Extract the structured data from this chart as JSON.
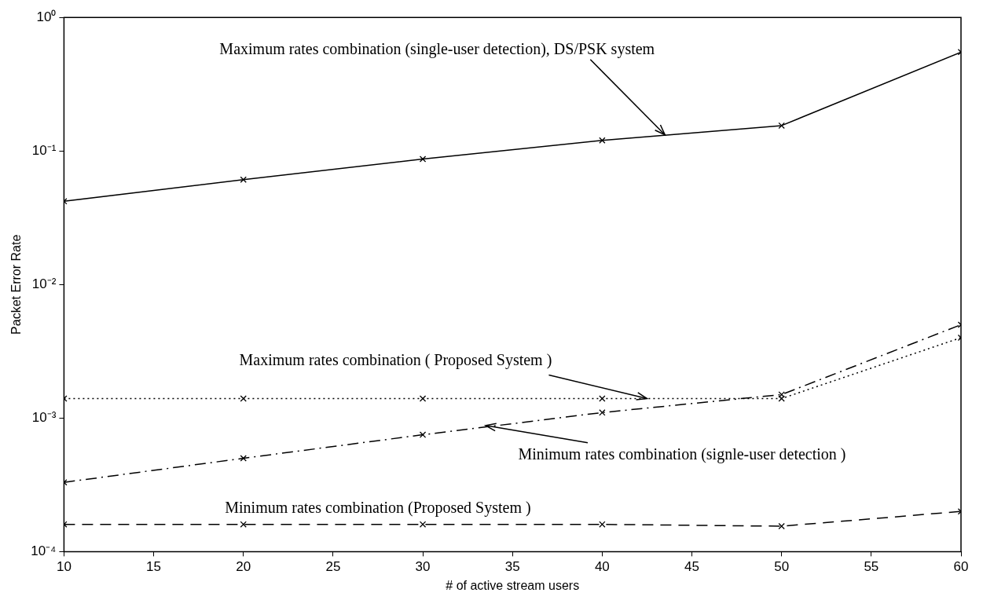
{
  "chart_data": {
    "type": "line",
    "xlabel": "# of active stream users",
    "ylabel": "Packet Error Rate",
    "x": [
      10,
      20,
      30,
      40,
      50,
      60
    ],
    "series": [
      {
        "color": "#000000",
        "line_style": "solid",
        "values": [
          0.042,
          0.061,
          0.087,
          0.12,
          0.155,
          0.55
        ]
      },
      {
        "color": "#000000",
        "line_style": "dotted",
        "values": [
          0.0014,
          0.0014,
          0.0014,
          0.0014,
          0.0014,
          0.004
        ]
      },
      {
        "color": "#000000",
        "line_style": "dashdot",
        "values": [
          0.00033,
          0.0005,
          0.00075,
          0.0011,
          0.0015,
          0.005
        ]
      },
      {
        "color": "#000000",
        "line_style": "dashed",
        "values": [
          0.00016,
          0.00016,
          0.00016,
          0.00016,
          0.000155,
          0.0002
        ]
      }
    ],
    "marker": "cross",
    "log": "y",
    "grid": false,
    "legend": false,
    "xlim": [
      10,
      60
    ],
    "xticks": [
      10,
      15,
      20,
      25,
      30,
      35,
      40,
      45,
      50,
      55,
      60
    ],
    "ylim": [
      0.0001,
      1
    ],
    "yticks": [
      {
        "value": 0.0001,
        "label": "10⁻⁴"
      },
      {
        "value": 0.001,
        "label": "10⁻³"
      },
      {
        "value": 0.01,
        "label": "10⁻²"
      },
      {
        "value": 0.1,
        "label": "10⁻¹"
      },
      {
        "value": 1,
        "label": "10⁰"
      }
    ],
    "annotations": [
      {
        "text": "Maximum rates combination (single-user detection), DS/PSK system",
        "x": 43.5,
        "y": 0.132
      },
      {
        "text": "Maximum rates combination ( Proposed System )",
        "x": 42.5,
        "y": 0.0014
      },
      {
        "text": "Minimum rates combination (signle-user detection )",
        "x": 33.5,
        "y": 0.00088
      },
      "Minimum rates combination (Proposed System )"
    ]
  }
}
